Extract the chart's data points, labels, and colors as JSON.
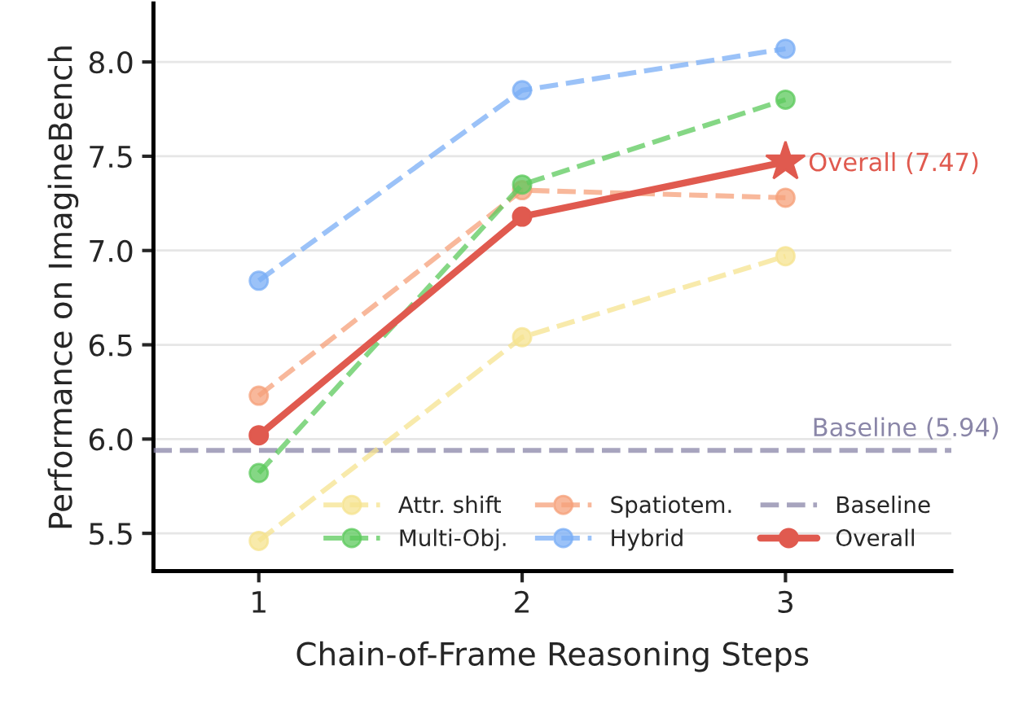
{
  "chart_data": {
    "type": "line",
    "xlabel": "Chain-of-Frame Reasoning Steps",
    "ylabel": "Performance on ImagineBench",
    "x": [
      1,
      2,
      3
    ],
    "series": [
      {
        "name": "Attr. shift",
        "color": "#f5e38f",
        "values": [
          5.46,
          6.54,
          6.97
        ],
        "line_style": "dashed",
        "marker": "circle"
      },
      {
        "name": "Multi-Obj.",
        "color": "#5cc95c",
        "values": [
          5.82,
          7.35,
          7.8
        ],
        "line_style": "dashed",
        "marker": "circle"
      },
      {
        "name": "Spatiotem.",
        "color": "#f5a07a",
        "values": [
          6.23,
          7.32,
          7.28
        ],
        "line_style": "dashed",
        "marker": "circle"
      },
      {
        "name": "Hybrid",
        "color": "#7aaef5",
        "values": [
          6.84,
          7.85,
          8.07
        ],
        "line_style": "dashed",
        "marker": "circle"
      },
      {
        "name": "Baseline",
        "color": "#8a86a8",
        "x": [
          0.6,
          3.63
        ],
        "values": [
          5.94,
          5.94
        ],
        "line_style": "dashed",
        "marker": "none"
      },
      {
        "name": "Overall",
        "color": "#e05a4f",
        "values": [
          6.02,
          7.18,
          7.47
        ],
        "line_style": "solid",
        "marker": "circle"
      }
    ],
    "annotations": [
      {
        "text": "Overall (7.47)",
        "x": 3,
        "y": 7.47
      },
      {
        "text": "Baseline (5.94)",
        "x": 3.1,
        "y": 5.94
      }
    ],
    "xlim": [
      0.6,
      3.63
    ],
    "xticks": [
      1,
      2,
      3
    ],
    "ylim": [
      5.3,
      8.31
    ],
    "yticks": [
      5.5,
      {
        "value": 6,
        "label": "6.0"
      },
      6.5,
      {
        "value": 7,
        "label": "7.0"
      },
      7.5,
      {
        "value": 8,
        "label": "8.0"
      }
    ],
    "grid": "y",
    "legend": "bottom right"
  }
}
